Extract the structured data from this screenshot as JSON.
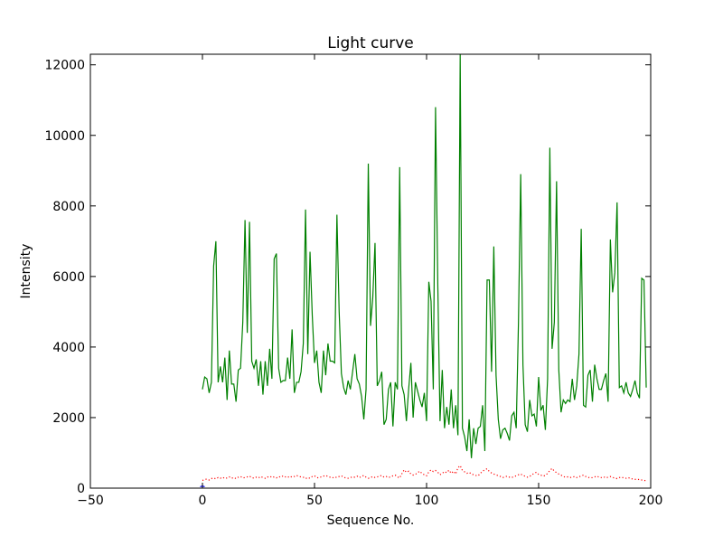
{
  "chart_data": {
    "type": "line",
    "title": "Light curve",
    "xlabel": "Sequence No.",
    "ylabel": "Intensity",
    "xlim": [
      -50,
      200
    ],
    "ylim": [
      0,
      12300
    ],
    "xticks": [
      -50,
      0,
      50,
      100,
      150,
      200
    ],
    "yticks": [
      0,
      2000,
      4000,
      6000,
      8000,
      10000,
      12000
    ],
    "grid": false,
    "legend": "none",
    "series": [
      {
        "color": "#008000",
        "style": "solid",
        "x_start": 0,
        "x_step": 1,
        "values": [
          2800,
          3150,
          3100,
          2700,
          3000,
          6300,
          7000,
          3000,
          3450,
          3000,
          3700,
          2500,
          3900,
          2950,
          2950,
          2450,
          3350,
          3400,
          4700,
          7600,
          4400,
          7550,
          3600,
          3400,
          3650,
          2900,
          3600,
          2650,
          3600,
          2900,
          3950,
          3100,
          6500,
          6650,
          3400,
          3000,
          3050,
          3050,
          3700,
          3100,
          4500,
          2700,
          3000,
          3000,
          3300,
          4100,
          7900,
          3800,
          6700,
          4900,
          3550,
          3900,
          3000,
          2700,
          3900,
          3200,
          4100,
          3600,
          3600,
          3550,
          7750,
          5000,
          3250,
          2850,
          2650,
          3050,
          2800,
          3300,
          3800,
          3100,
          2950,
          2600,
          1950,
          2800,
          9200,
          4600,
          5400,
          6950,
          2900,
          3050,
          3300,
          1800,
          1950,
          2800,
          3000,
          1750,
          3000,
          2800,
          9100,
          2900,
          2650,
          1900,
          2800,
          3550,
          2000,
          3000,
          2750,
          2500,
          2300,
          2700,
          1900,
          5850,
          5300,
          2800,
          10800,
          5800,
          1900,
          3350,
          1700,
          2300,
          1800,
          2800,
          1700,
          2350,
          1500,
          12300,
          1700,
          1450,
          1050,
          1950,
          850,
          1700,
          1250,
          1700,
          1750,
          2350,
          1050,
          5900,
          5900,
          3300,
          6850,
          3200,
          1950,
          1400,
          1650,
          1700,
          1550,
          1350,
          2050,
          2150,
          1700,
          4700,
          8900,
          3500,
          1800,
          1600,
          2500,
          2050,
          2100,
          1750,
          3150,
          2200,
          2350,
          1650,
          3100,
          9650,
          3950,
          4700,
          8700,
          3350,
          2150,
          2500,
          2400,
          2500,
          2450,
          3100,
          2500,
          2900,
          3800,
          7350,
          2350,
          2300,
          3200,
          3350,
          2450,
          3500,
          3100,
          2800,
          2800,
          3050,
          3250,
          2450,
          7050,
          5550,
          6100,
          8100,
          2850,
          2900,
          2700,
          3000,
          2700,
          2600,
          2800,
          3050,
          2700,
          2550,
          5950,
          5900,
          2850
        ]
      },
      {
        "color": "#ff0000",
        "style": "dotted",
        "x_start": 0,
        "x_step": 1,
        "values": [
          220,
          240,
          260,
          230,
          270,
          290,
          260,
          300,
          280,
          310,
          270,
          290,
          320,
          280,
          300,
          270,
          310,
          330,
          290,
          300,
          320,
          340,
          300,
          280,
          310,
          290,
          330,
          300,
          280,
          320,
          300,
          340,
          310,
          290,
          330,
          310,
          350,
          320,
          300,
          340,
          310,
          330,
          360,
          330,
          320,
          310,
          270,
          300,
          280,
          330,
          350,
          300,
          290,
          320,
          340,
          360,
          330,
          310,
          290,
          320,
          300,
          330,
          350,
          310,
          290,
          280,
          300,
          320,
          310,
          340,
          300,
          330,
          360,
          310,
          280,
          300,
          330,
          300,
          320,
          340,
          360,
          310,
          330,
          300,
          320,
          350,
          370,
          320,
          290,
          410,
          520,
          450,
          480,
          400,
          370,
          390,
          440,
          480,
          410,
          380,
          350,
          460,
          520,
          470,
          500,
          450,
          380,
          420,
          470,
          440,
          510,
          420,
          480,
          400,
          580,
          640,
          500,
          460,
          420,
          450,
          400,
          380,
          360,
          350,
          420,
          480,
          520,
          550,
          470,
          430,
          400,
          380,
          350,
          330,
          300,
          320,
          340,
          310,
          300,
          330,
          350,
          380,
          400,
          360,
          340,
          310,
          330,
          380,
          420,
          450,
          390,
          370,
          340,
          360,
          420,
          500,
          560,
          480,
          440,
          400,
          370,
          330,
          310,
          320,
          300,
          310,
          330,
          300,
          320,
          350,
          370,
          330,
          310,
          290,
          300,
          320,
          340,
          310,
          300,
          320,
          290,
          310,
          330,
          300,
          290,
          270,
          300,
          310,
          290,
          280,
          300,
          270,
          260,
          250,
          240,
          250,
          230,
          220,
          210
        ]
      },
      {
        "color": "#0000ff",
        "style": "solid",
        "x": [
          -1,
          0,
          1
        ],
        "y": [
          40,
          60,
          40
        ]
      }
    ]
  }
}
